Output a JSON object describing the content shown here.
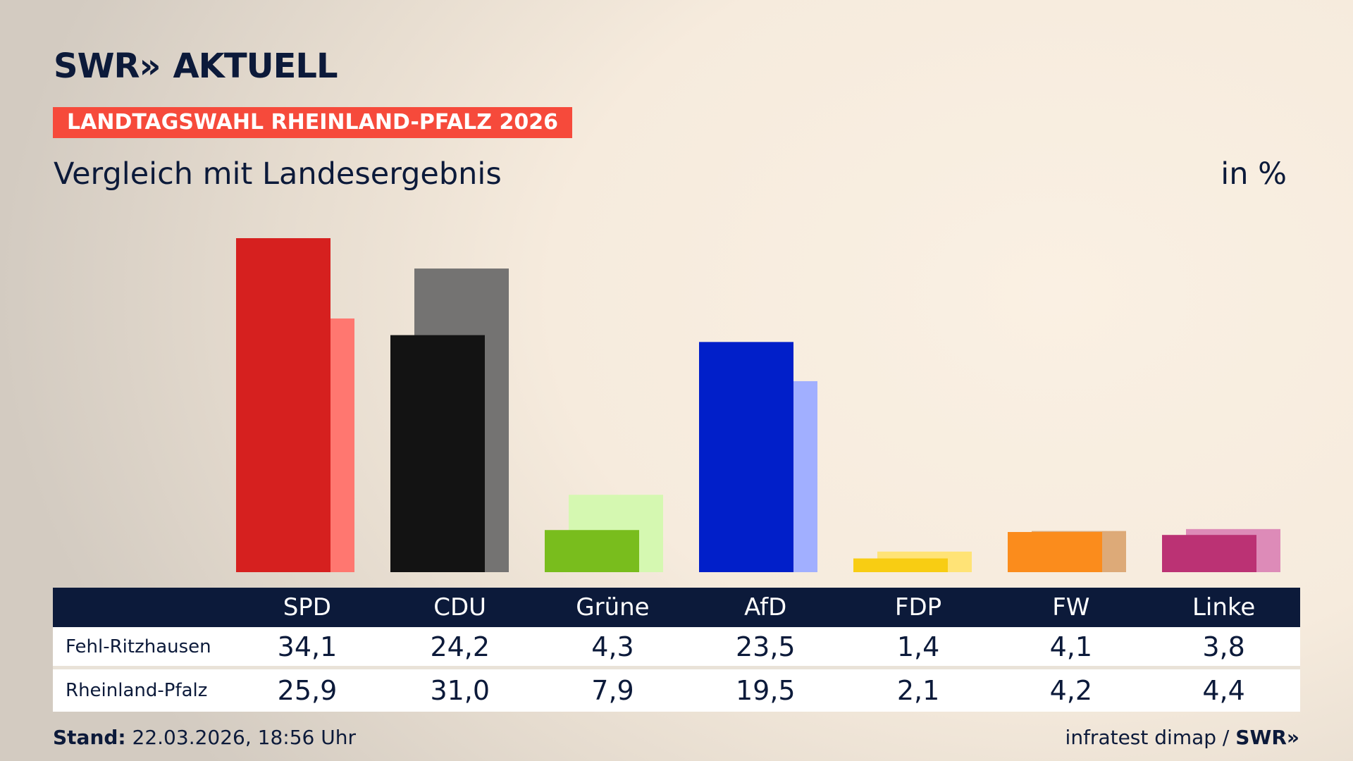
{
  "header": {
    "brand_left": "SWR",
    "brand_arrows": "»",
    "brand_right": "AKTUELL",
    "badge": "LANDTAGSWAHL RHEINLAND-PFALZ 2026",
    "subtitle": "Vergleich mit Landesergebnis",
    "unit": "in %"
  },
  "chart_data": {
    "type": "bar",
    "title": "Vergleich mit Landesergebnis",
    "ylabel": "in %",
    "categories": [
      "SPD",
      "CDU",
      "Grüne",
      "AfD",
      "FDP",
      "FW",
      "Linke"
    ],
    "series": [
      {
        "name": "Fehl-Ritzhausen",
        "values": [
          34.1,
          24.2,
          4.3,
          23.5,
          1.4,
          4.1,
          3.8
        ]
      },
      {
        "name": "Rheinland-Pfalz",
        "values": [
          25.9,
          31.0,
          7.9,
          19.5,
          2.1,
          4.2,
          4.4
        ]
      }
    ],
    "colors": {
      "primary": [
        "#d6201f",
        "#131313",
        "#79bd1d",
        "#011fc9",
        "#f8cd13",
        "#fb8c1c",
        "#bb3274"
      ],
      "secondary": [
        "#ff7770",
        "#747372",
        "#d5f8b1",
        "#a1afff",
        "#ffe376",
        "#ddaa78",
        "#dd8bb8"
      ]
    },
    "grid": false,
    "legend": "table-below"
  },
  "table": {
    "parties": [
      "SPD",
      "CDU",
      "Grüne",
      "AfD",
      "FDP",
      "FW",
      "Linke"
    ],
    "rows": [
      {
        "label": "Fehl-Ritzhausen",
        "values": [
          "34,1",
          "24,2",
          "4,3",
          "23,5",
          "1,4",
          "4,1",
          "3,8"
        ]
      },
      {
        "label": "Rheinland-Pfalz",
        "values": [
          "25,9",
          "31,0",
          "7,9",
          "19,5",
          "2,1",
          "4,2",
          "4,4"
        ]
      }
    ]
  },
  "footer": {
    "stand_label": "Stand:",
    "stand_value": "22.03.2026, 18:56 Uhr",
    "source": "infratest dimap /",
    "source_brand": "SWR",
    "source_arrows": "»"
  }
}
